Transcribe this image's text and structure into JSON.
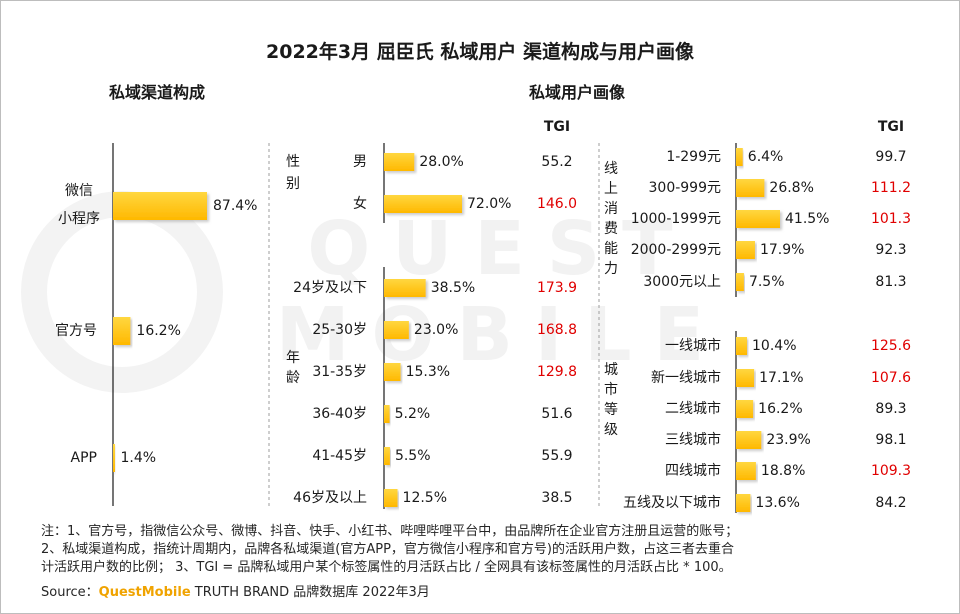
{
  "title": "2022年3月 屈臣氏 私域用户 渠道构成与用户画像",
  "left_section": "私域渠道构成",
  "right_section": "私域用户画像",
  "tgi_header": "TGI",
  "watermark": "QUEST MOBILE",
  "colors": {
    "bar": "#ffc000",
    "bar_light": "#ffd740",
    "highlight": "#e00000",
    "text": "#1a1a1a",
    "axis": "#1a1a1a",
    "dash": "#9e9e9e"
  },
  "chart_data": [
    {
      "type": "bar",
      "title": "私域渠道构成",
      "unit": "%",
      "categories": [
        "微信小程序",
        "官方号",
        "APP"
      ],
      "values": [
        87.4,
        16.2,
        1.4
      ],
      "value_labels": [
        "87.4%",
        "16.2%",
        "1.4%"
      ]
    },
    {
      "type": "bar",
      "title": "私域用户画像",
      "groups": [
        {
          "name": "性别",
          "categories": [
            "男",
            "女"
          ],
          "values": [
            28.0,
            72.0
          ],
          "value_labels": [
            "28.0%",
            "72.0%"
          ],
          "tgi": [
            "55.2",
            "146.0"
          ],
          "tgi_high": [
            false,
            true
          ]
        },
        {
          "name": "年龄",
          "categories": [
            "24岁及以下",
            "25-30岁",
            "31-35岁",
            "36-40岁",
            "41-45岁",
            "46岁及以上"
          ],
          "values": [
            38.5,
            23.0,
            15.3,
            5.2,
            5.5,
            12.5
          ],
          "value_labels": [
            "38.5%",
            "23.0%",
            "15.3%",
            "5.2%",
            "5.5%",
            "12.5%"
          ],
          "tgi": [
            "173.9",
            "168.8",
            "129.8",
            "51.6",
            "55.9",
            "38.5"
          ],
          "tgi_high": [
            true,
            true,
            true,
            false,
            false,
            false
          ]
        },
        {
          "name": "线上消费能力",
          "categories": [
            "1-299元",
            "300-999元",
            "1000-1999元",
            "2000-2999元",
            "3000元以上"
          ],
          "values": [
            6.4,
            26.8,
            41.5,
            17.9,
            7.5
          ],
          "value_labels": [
            "6.4%",
            "26.8%",
            "41.5%",
            "17.9%",
            "7.5%"
          ],
          "tgi": [
            "99.7",
            "111.2",
            "101.3",
            "92.3",
            "81.3"
          ],
          "tgi_high": [
            false,
            true,
            true,
            false,
            false
          ]
        },
        {
          "name": "城市等级",
          "categories": [
            "一线城市",
            "新一线城市",
            "二线城市",
            "三线城市",
            "四线城市",
            "五线及以下城市"
          ],
          "values": [
            10.4,
            17.1,
            16.2,
            23.9,
            18.8,
            13.6
          ],
          "value_labels": [
            "10.4%",
            "17.1%",
            "16.2%",
            "23.9%",
            "18.8%",
            "13.6%"
          ],
          "tgi": [
            "125.6",
            "107.6",
            "89.3",
            "98.1",
            "109.3",
            "84.2"
          ],
          "tgi_high": [
            true,
            true,
            false,
            false,
            true,
            false
          ]
        }
      ]
    }
  ],
  "notes": [
    "注：1、官方号，指微信公众号、微博、抖音、快手、小红书、哔哩哔哩平台中，由品牌所在企业官方注册且运营的账号；",
    "2、私域渠道构成，指统计周期内，品牌各私域渠道(官方APP，官方微信小程序和官方号)的活跃用户数，占这三者去重合",
    "计活跃用户数的比例； 3、TGI = 品牌私域用户某个标签属性的月活跃占比 / 全网具有该标签属性的月活跃占比 * 100。"
  ],
  "source": {
    "label": "Source：",
    "brand": "QuestMobile",
    "text": "TRUTH BRAND 品牌数据库 2022年3月"
  }
}
